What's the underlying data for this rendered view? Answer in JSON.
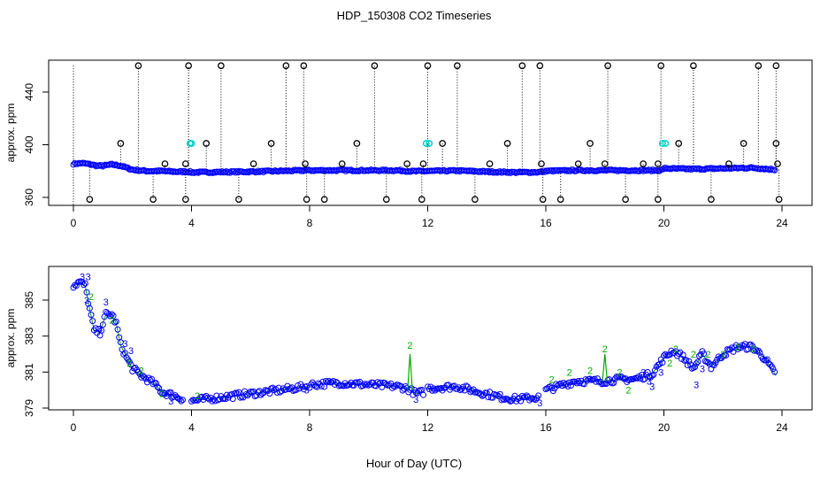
{
  "figure": {
    "title": "HDP_150308  CO2 Timeseries",
    "xlabel": "Hour of Day (UTC)"
  },
  "chart_data": [
    {
      "type": "scatter",
      "panel": "top",
      "ylabel": "approx. ppm",
      "xlim": [
        0,
        24
      ],
      "ylim": [
        355,
        462
      ],
      "xticks": [
        0,
        4,
        8,
        12,
        16,
        20,
        24
      ],
      "yticks": [
        360,
        400,
        440
      ],
      "colors": {
        "series": "#0000ff",
        "outlier": "#000000",
        "flag": "#00cccc",
        "drop": "#000000"
      },
      "baseline": [
        [
          0.0,
          385.5
        ],
        [
          0.3,
          386
        ],
        [
          0.6,
          385
        ],
        [
          0.8,
          384
        ],
        [
          1.0,
          384
        ],
        [
          1.3,
          385
        ],
        [
          1.6,
          384
        ],
        [
          2.0,
          381
        ],
        [
          2.5,
          380
        ],
        [
          3.0,
          380
        ],
        [
          3.5,
          379.5
        ],
        [
          3.9,
          379.5
        ],
        [
          4.0,
          379
        ],
        [
          6.0,
          379.5
        ],
        [
          7.9,
          380.5
        ],
        [
          8.0,
          380.5
        ],
        [
          11.0,
          380.5
        ],
        [
          11.5,
          379.8
        ],
        [
          12.0,
          380
        ],
        [
          12.2,
          380
        ],
        [
          13.0,
          380.3
        ],
        [
          14.0,
          379.5
        ],
        [
          15.0,
          379
        ],
        [
          15.8,
          379.2
        ],
        [
          16.0,
          380
        ],
        [
          17.0,
          380.5
        ],
        [
          18.0,
          380.5
        ],
        [
          19.0,
          380.5
        ],
        [
          19.9,
          380.5
        ],
        [
          20.0,
          382
        ],
        [
          21.0,
          381.5
        ],
        [
          22.0,
          382
        ],
        [
          23.0,
          382.5
        ],
        [
          23.8,
          381
        ]
      ],
      "outliers_high": [
        2.2,
        3.9,
        5.0,
        7.2,
        7.8,
        10.2,
        12.0,
        13.0,
        15.2,
        15.8,
        18.1,
        19.9,
        21.0,
        23.2,
        23.8
      ],
      "outliers_mid": [
        1.6,
        4.5,
        6.7,
        9.6,
        12.5,
        14.7,
        17.5,
        20.5,
        22.7,
        23.8
      ],
      "outliers_low": [
        0.55,
        2.7,
        3.8,
        5.6,
        7.9,
        8.5,
        10.6,
        11.8,
        13.6,
        15.9,
        16.5,
        18.7,
        19.8,
        21.6,
        23.9
      ],
      "outliers_near": [
        3.1,
        3.8,
        6.1,
        7.85,
        9.1,
        11.3,
        11.85,
        14.1,
        15.85,
        17.1,
        18.0,
        19.3,
        19.8,
        22.2,
        23.85
      ],
      "flags_cyan": [
        3.95,
        4.0,
        11.95,
        12.05,
        19.95,
        20.05
      ],
      "drop_line": [
        0.0,
        460,
        355
      ]
    },
    {
      "type": "scatter",
      "panel": "bottom",
      "ylabel": "approx. ppm",
      "xlim": [
        0,
        24
      ],
      "ylim": [
        378.8,
        386.7
      ],
      "xticks": [
        0,
        4,
        8,
        12,
        16,
        20,
        24
      ],
      "yticks": [
        379,
        381,
        383,
        385
      ],
      "colors": {
        "series": "#0000ff",
        "line": "#00aa00",
        "label2": "#00aa00",
        "label3": "#0000ff"
      },
      "series": [
        [
          0.0,
          385.8
        ],
        [
          0.2,
          386.0
        ],
        [
          0.4,
          385.8
        ],
        [
          0.55,
          384.5
        ],
        [
          0.7,
          383.3
        ],
        [
          0.9,
          383.2
        ],
        [
          1.1,
          384.2
        ],
        [
          1.3,
          384.2
        ],
        [
          1.45,
          383.7
        ],
        [
          1.6,
          382.5
        ],
        [
          1.8,
          381.8
        ],
        [
          2.0,
          381.2
        ],
        [
          2.3,
          380.8
        ],
        [
          2.7,
          380.4
        ],
        [
          3.0,
          379.9
        ],
        [
          3.4,
          379.7
        ],
        [
          3.7,
          379.5
        ],
        null,
        [
          4.0,
          379.4
        ],
        [
          5.0,
          379.6
        ],
        [
          6.0,
          379.8
        ],
        [
          7.0,
          380.0
        ],
        [
          7.9,
          380.2
        ],
        null,
        [
          8.0,
          380.3
        ],
        [
          9.0,
          380.4
        ],
        [
          10.0,
          380.3
        ],
        [
          11.0,
          380.2
        ],
        [
          11.3,
          380.1
        ],
        [
          11.6,
          379.8
        ],
        [
          11.9,
          379.9
        ],
        null,
        [
          12.0,
          380.1
        ],
        [
          13.0,
          380.2
        ],
        [
          13.7,
          379.9
        ],
        [
          14.5,
          379.6
        ],
        [
          15.0,
          379.5
        ],
        [
          15.8,
          379.6
        ],
        null,
        [
          16.0,
          380.0
        ],
        [
          17.0,
          380.5
        ],
        [
          18.0,
          380.5
        ],
        [
          18.5,
          380.6
        ],
        [
          19.0,
          380.6
        ],
        [
          19.6,
          380.9
        ],
        [
          20.0,
          381.8
        ],
        [
          20.3,
          382.2
        ],
        [
          20.6,
          381.9
        ],
        [
          21.0,
          381.2
        ],
        [
          21.3,
          382.0
        ],
        [
          21.6,
          381.3
        ],
        [
          22.0,
          382.0
        ],
        [
          22.5,
          382.4
        ],
        [
          23.0,
          382.4
        ],
        [
          23.4,
          381.8
        ],
        [
          23.8,
          380.8
        ]
      ],
      "spikes": [
        [
          11.4,
          382.0
        ],
        [
          18.0,
          382.0
        ]
      ],
      "labels": [
        {
          "x": 0.3,
          "y": 386.3,
          "t": "3"
        },
        {
          "x": 0.5,
          "y": 386.3,
          "t": "3"
        },
        {
          "x": 0.45,
          "y": 385.0,
          "t": "3"
        },
        {
          "x": 1.1,
          "y": 384.9,
          "t": "3"
        },
        {
          "x": 0.9,
          "y": 383.4,
          "t": "3"
        },
        {
          "x": 1.75,
          "y": 382.6,
          "t": "3"
        },
        {
          "x": 1.95,
          "y": 382.2,
          "t": "3"
        },
        {
          "x": 3.1,
          "y": 379.8,
          "t": "3"
        },
        {
          "x": 3.3,
          "y": 379.4,
          "t": "3"
        },
        {
          "x": 7.9,
          "y": 380.0,
          "t": "3"
        },
        {
          "x": 11.6,
          "y": 379.5,
          "t": "3"
        },
        {
          "x": 15.8,
          "y": 379.3,
          "t": "3"
        },
        {
          "x": 19.5,
          "y": 380.5,
          "t": "3"
        },
        {
          "x": 19.3,
          "y": 381.0,
          "t": "3"
        },
        {
          "x": 19.9,
          "y": 381.0,
          "t": "3"
        },
        {
          "x": 21.1,
          "y": 380.3,
          "t": "3"
        },
        {
          "x": 21.3,
          "y": 381.2,
          "t": "3"
        },
        {
          "x": 19.6,
          "y": 380.2,
          "t": "3"
        },
        {
          "x": 0.6,
          "y": 385.2,
          "t": "2"
        },
        {
          "x": 1.3,
          "y": 383.9,
          "t": "2"
        },
        {
          "x": 1.9,
          "y": 381.5,
          "t": "2"
        },
        {
          "x": 2.3,
          "y": 381.1,
          "t": "2"
        },
        {
          "x": 3.0,
          "y": 379.8,
          "t": "2"
        },
        {
          "x": 4.2,
          "y": 379.7,
          "t": "2"
        },
        {
          "x": 11.4,
          "y": 382.5,
          "t": "2"
        },
        {
          "x": 16.2,
          "y": 380.6,
          "t": "2"
        },
        {
          "x": 16.8,
          "y": 381.0,
          "t": "2"
        },
        {
          "x": 17.5,
          "y": 381.1,
          "t": "2"
        },
        {
          "x": 18.0,
          "y": 382.3,
          "t": "2"
        },
        {
          "x": 18.5,
          "y": 381.0,
          "t": "2"
        },
        {
          "x": 18.8,
          "y": 380.0,
          "t": "2"
        },
        {
          "x": 20.4,
          "y": 382.3,
          "t": "2"
        },
        {
          "x": 20.2,
          "y": 381.5,
          "t": "2"
        },
        {
          "x": 21.0,
          "y": 382.0,
          "t": "2"
        },
        {
          "x": 21.5,
          "y": 382.0,
          "t": "2"
        },
        {
          "x": 22.0,
          "y": 382.0,
          "t": "2"
        },
        {
          "x": 22.5,
          "y": 382.4,
          "t": "2"
        },
        {
          "x": 23.0,
          "y": 382.3,
          "t": "2"
        }
      ]
    }
  ]
}
